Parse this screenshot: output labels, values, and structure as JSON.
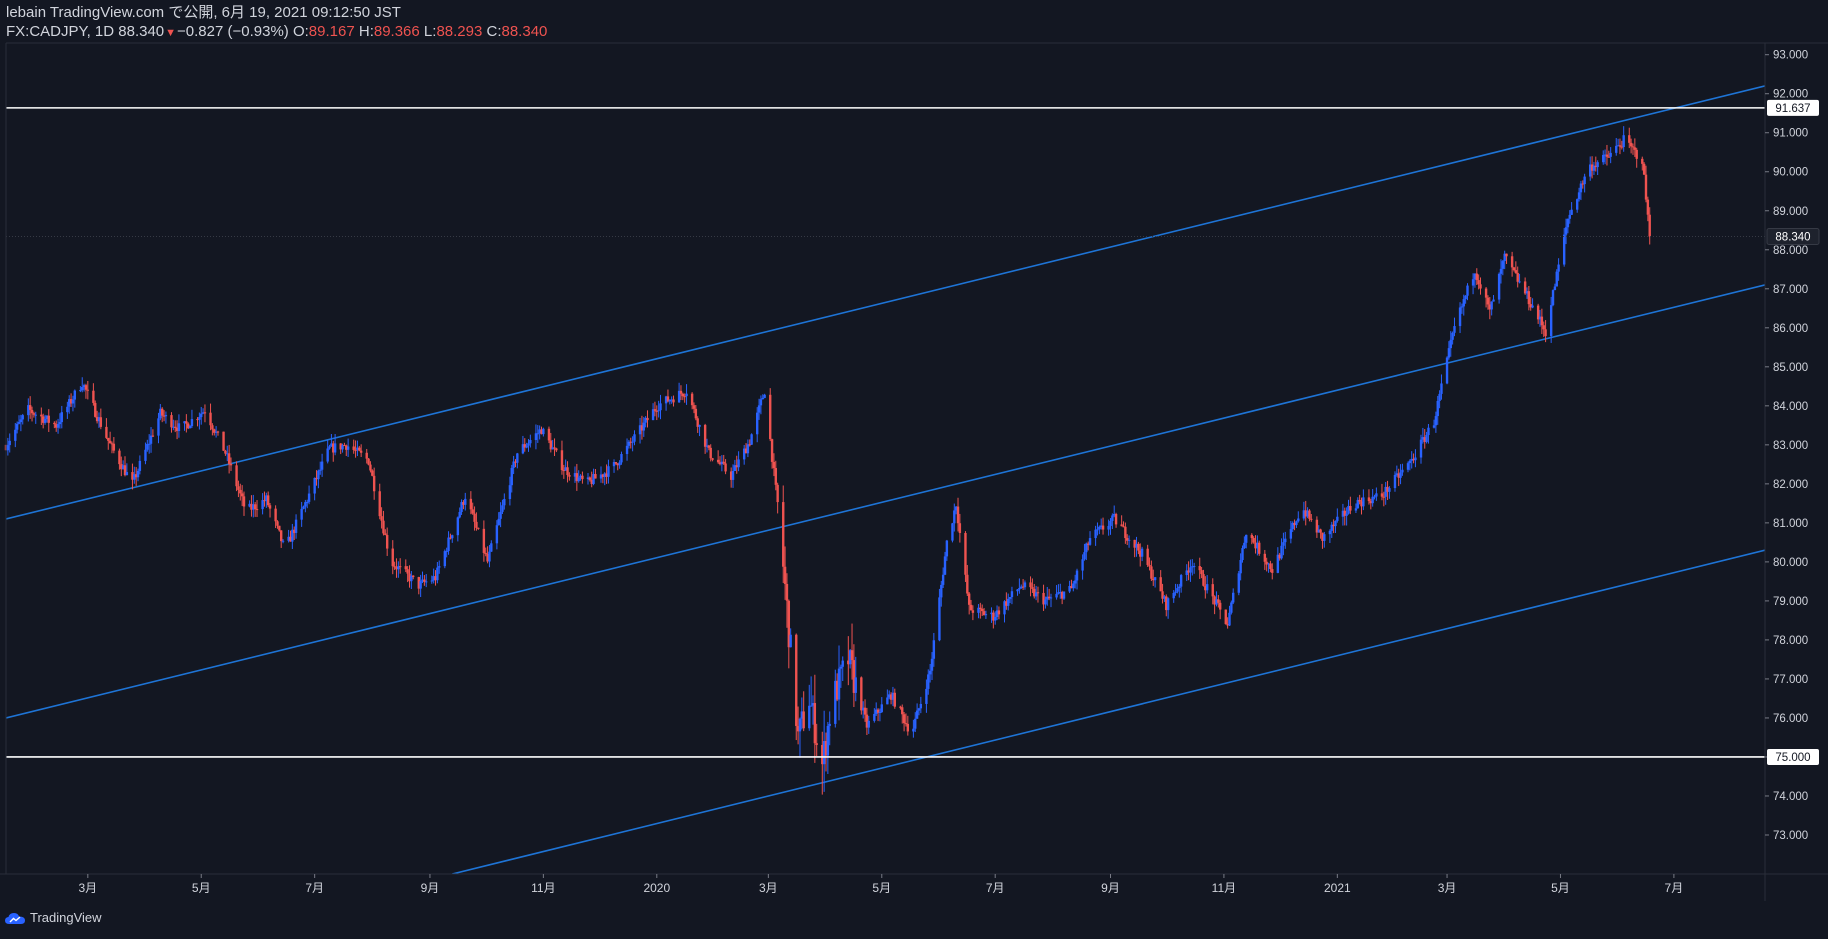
{
  "header": {
    "line1": "lebain TradingView.com で公開, 6月 19, 2021 09:12:50 JST",
    "symbol": "FX:CADJPY, 1D 88.340",
    "change": "−0.827 (−0.93%)",
    "o_label": "O:",
    "o_value": "89.167",
    "h_label": "H:",
    "h_value": "89.366",
    "l_label": "L:",
    "l_value": "88.293",
    "c_label": "C:",
    "c_value": "88.340"
  },
  "footer": {
    "brand": "TradingView",
    "logo_icon": "tradingview-cloud-icon"
  },
  "colors": {
    "background": "#131722",
    "up": "#2962ff",
    "down": "#ef5350",
    "trendline": "#1e74d6",
    "hline": "#ffffff",
    "text": "#d1d4dc",
    "axis_border": "#2a2e39"
  },
  "chart_data": {
    "type": "candlestick",
    "symbol": "FX:CADJPY",
    "interval": "1D",
    "last_price": "88.340",
    "ylim": [
      72.0,
      93.3
    ],
    "y_ticks": [
      "73.000",
      "74.000",
      "75.000",
      "76.000",
      "77.000",
      "78.000",
      "79.000",
      "80.000",
      "81.000",
      "82.000",
      "83.000",
      "84.000",
      "85.000",
      "86.000",
      "87.000",
      "88.000",
      "89.000",
      "90.000",
      "91.000",
      "92.000",
      "93.000"
    ],
    "x_ticks": [
      {
        "label": "3月",
        "date": "2019-03-01"
      },
      {
        "label": "5月",
        "date": "2019-05-01"
      },
      {
        "label": "7月",
        "date": "2019-07-01"
      },
      {
        "label": "9月",
        "date": "2019-09-01"
      },
      {
        "label": "11月",
        "date": "2019-11-01"
      },
      {
        "label": "2020",
        "date": "2020-01-01"
      },
      {
        "label": "3月",
        "date": "2020-03-01"
      },
      {
        "label": "5月",
        "date": "2020-05-01"
      },
      {
        "label": "7月",
        "date": "2020-07-01"
      },
      {
        "label": "9月",
        "date": "2020-09-01"
      },
      {
        "label": "11月",
        "date": "2020-11-01"
      },
      {
        "label": "2021",
        "date": "2021-01-01"
      },
      {
        "label": "3月",
        "date": "2021-03-01"
      },
      {
        "label": "5月",
        "date": "2021-05-01"
      },
      {
        "label": "7月",
        "date": "2021-07-01"
      }
    ],
    "horizontal_lines": [
      {
        "price": 91.637,
        "label": "91.637"
      },
      {
        "price": 75.0,
        "label": "75.000"
      }
    ],
    "price_tag": {
      "price": 88.34,
      "label": "88.340"
    },
    "trend_lines": [
      {
        "name": "upper",
        "points": [
          {
            "date": "2019-01-16",
            "price": 81.1
          },
          {
            "date": "2021-08-19",
            "price": 92.2
          }
        ]
      },
      {
        "name": "middle",
        "points": [
          {
            "date": "2019-01-16",
            "price": 76.0
          },
          {
            "date": "2021-08-19",
            "price": 87.1
          }
        ]
      },
      {
        "name": "lower",
        "points": [
          {
            "date": "2019-09-13",
            "price": 72.0
          },
          {
            "date": "2021-08-19",
            "price": 80.3
          }
        ]
      }
    ],
    "price_path": [
      {
        "date": "2019-01-16",
        "price": 83.0
      },
      {
        "date": "2019-01-28",
        "price": 83.9
      },
      {
        "date": "2019-02-12",
        "price": 83.5
      },
      {
        "date": "2019-02-26",
        "price": 84.6
      },
      {
        "date": "2019-03-13",
        "price": 83.0
      },
      {
        "date": "2019-03-25",
        "price": 82.0
      },
      {
        "date": "2019-04-09",
        "price": 83.8
      },
      {
        "date": "2019-04-20",
        "price": 83.4
      },
      {
        "date": "2019-05-03",
        "price": 83.9
      },
      {
        "date": "2019-05-14",
        "price": 82.8
      },
      {
        "date": "2019-05-25",
        "price": 81.3
      },
      {
        "date": "2019-06-05",
        "price": 81.6
      },
      {
        "date": "2019-06-15",
        "price": 80.3
      },
      {
        "date": "2019-06-26",
        "price": 81.5
      },
      {
        "date": "2019-07-09",
        "price": 82.9
      },
      {
        "date": "2019-07-18",
        "price": 83.0
      },
      {
        "date": "2019-07-30",
        "price": 82.6
      },
      {
        "date": "2019-08-11",
        "price": 80.0
      },
      {
        "date": "2019-08-26",
        "price": 79.4
      },
      {
        "date": "2019-09-04",
        "price": 79.6
      },
      {
        "date": "2019-09-20",
        "price": 81.7
      },
      {
        "date": "2019-10-02",
        "price": 80.0
      },
      {
        "date": "2019-10-18",
        "price": 82.8
      },
      {
        "date": "2019-10-31",
        "price": 83.4
      },
      {
        "date": "2019-11-12",
        "price": 82.4
      },
      {
        "date": "2019-11-24",
        "price": 82.0
      },
      {
        "date": "2019-12-08",
        "price": 82.4
      },
      {
        "date": "2019-12-22",
        "price": 83.3
      },
      {
        "date": "2020-01-01",
        "price": 84.0
      },
      {
        "date": "2020-01-17",
        "price": 84.4
      },
      {
        "date": "2020-01-29",
        "price": 82.8
      },
      {
        "date": "2020-02-10",
        "price": 82.2
      },
      {
        "date": "2020-02-20",
        "price": 83.1
      },
      {
        "date": "2020-02-28",
        "price": 84.4
      },
      {
        "date": "2020-03-07",
        "price": 81.0
      },
      {
        "date": "2020-03-17",
        "price": 75.5
      },
      {
        "date": "2020-03-23",
        "price": 76.5
      },
      {
        "date": "2020-03-30",
        "price": 74.8
      },
      {
        "date": "2020-04-04",
        "price": 76.4
      },
      {
        "date": "2020-04-13",
        "price": 77.5
      },
      {
        "date": "2020-04-23",
        "price": 75.8
      },
      {
        "date": "2020-05-06",
        "price": 76.6
      },
      {
        "date": "2020-05-17",
        "price": 75.6
      },
      {
        "date": "2020-05-27",
        "price": 77.2
      },
      {
        "date": "2020-06-05",
        "price": 80.5
      },
      {
        "date": "2020-06-10",
        "price": 81.5
      },
      {
        "date": "2020-06-17",
        "price": 78.8
      },
      {
        "date": "2020-06-30",
        "price": 78.6
      },
      {
        "date": "2020-07-15",
        "price": 79.4
      },
      {
        "date": "2020-07-28",
        "price": 79.0
      },
      {
        "date": "2020-08-11",
        "price": 79.3
      },
      {
        "date": "2020-08-21",
        "price": 80.6
      },
      {
        "date": "2020-09-03",
        "price": 81.1
      },
      {
        "date": "2020-09-18",
        "price": 80.2
      },
      {
        "date": "2020-10-01",
        "price": 78.9
      },
      {
        "date": "2020-10-15",
        "price": 80.0
      },
      {
        "date": "2020-11-03",
        "price": 78.4
      },
      {
        "date": "2020-11-13",
        "price": 80.8
      },
      {
        "date": "2020-11-27",
        "price": 79.8
      },
      {
        "date": "2020-12-13",
        "price": 81.4
      },
      {
        "date": "2020-12-24",
        "price": 80.6
      },
      {
        "date": "2021-01-10",
        "price": 81.5
      },
      {
        "date": "2021-01-25",
        "price": 81.7
      },
      {
        "date": "2021-02-10",
        "price": 82.6
      },
      {
        "date": "2021-02-22",
        "price": 83.6
      },
      {
        "date": "2021-03-05",
        "price": 86.0
      },
      {
        "date": "2021-03-16",
        "price": 87.5
      },
      {
        "date": "2021-03-24",
        "price": 86.4
      },
      {
        "date": "2021-04-01",
        "price": 87.8
      },
      {
        "date": "2021-04-12",
        "price": 86.9
      },
      {
        "date": "2021-04-23",
        "price": 85.9
      },
      {
        "date": "2021-05-05",
        "price": 88.8
      },
      {
        "date": "2021-05-16",
        "price": 90.1
      },
      {
        "date": "2021-05-27",
        "price": 90.4
      },
      {
        "date": "2021-06-04",
        "price": 90.8
      },
      {
        "date": "2021-06-14",
        "price": 90.3
      },
      {
        "date": "2021-06-18",
        "price": 88.34
      }
    ]
  }
}
